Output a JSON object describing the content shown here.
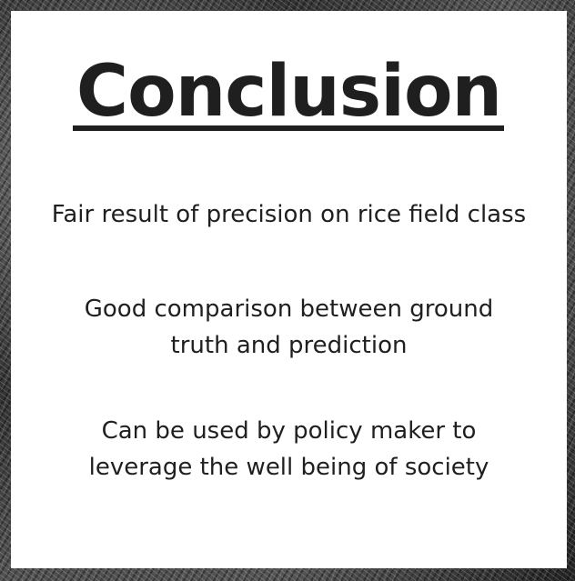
{
  "slide": {
    "title": "Conclusion",
    "points": [
      {
        "line1": "Fair result of precision on rice field class"
      },
      {
        "line1": "Good comparison between ground",
        "line2": "truth and prediction"
      },
      {
        "line1": "Can be used by policy maker to",
        "line2": "leverage the well being of society"
      }
    ]
  },
  "colors": {
    "card_background": "#ffffff",
    "text": "#1f1f1f",
    "frame_texture": "#4a4a4a"
  }
}
